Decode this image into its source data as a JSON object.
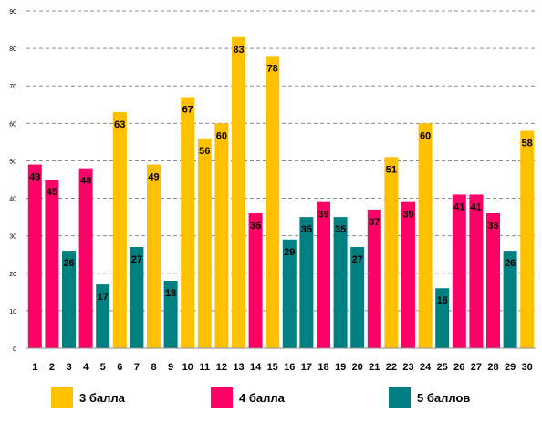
{
  "chart_data": {
    "type": "bar",
    "title": "",
    "xlabel": "",
    "ylabel": "",
    "ylim": [
      0,
      90
    ],
    "yticks": [
      0,
      10,
      20,
      30,
      40,
      50,
      60,
      70,
      80,
      90
    ],
    "grid": "horizontal dashed",
    "legend_position": "bottom",
    "categories": [
      "1",
      "2",
      "3",
      "4",
      "5",
      "6",
      "7",
      "8",
      "9",
      "10",
      "11",
      "12",
      "13",
      "14",
      "15",
      "16",
      "17",
      "18",
      "19",
      "20",
      "21",
      "22",
      "23",
      "24",
      "25",
      "26",
      "27",
      "28",
      "29",
      "30"
    ],
    "values": [
      49,
      45,
      26,
      48,
      17,
      63,
      27,
      49,
      18,
      67,
      56,
      60,
      83,
      36,
      78,
      29,
      35,
      39,
      35,
      27,
      37,
      51,
      39,
      60,
      16,
      41,
      41,
      36,
      26,
      58
    ],
    "groups": [
      "4 балла",
      "4 балла",
      "5 баллов",
      "4 балла",
      "5 баллов",
      "3 балла",
      "5 баллов",
      "3 балла",
      "5 баллов",
      "3 балла",
      "3 балла",
      "3 балла",
      "3 балла",
      "4 балла",
      "3 балла",
      "5 баллов",
      "5 баллов",
      "4 балла",
      "5 баллов",
      "5 баллов",
      "4 балла",
      "3 балла",
      "4 балла",
      "3 балла",
      "5 баллов",
      "4 балла",
      "4 балла",
      "4 балла",
      "5 баллов",
      "3 балла"
    ],
    "series": [
      {
        "name": "3 балла",
        "color": "#FFC000"
      },
      {
        "name": "4 балла",
        "color": "#FF0066"
      },
      {
        "name": "5 баллов",
        "color": "#008080"
      }
    ]
  },
  "legend": {
    "item1": "3 балла",
    "item2": "4 балла",
    "item3": "5 баллов"
  }
}
